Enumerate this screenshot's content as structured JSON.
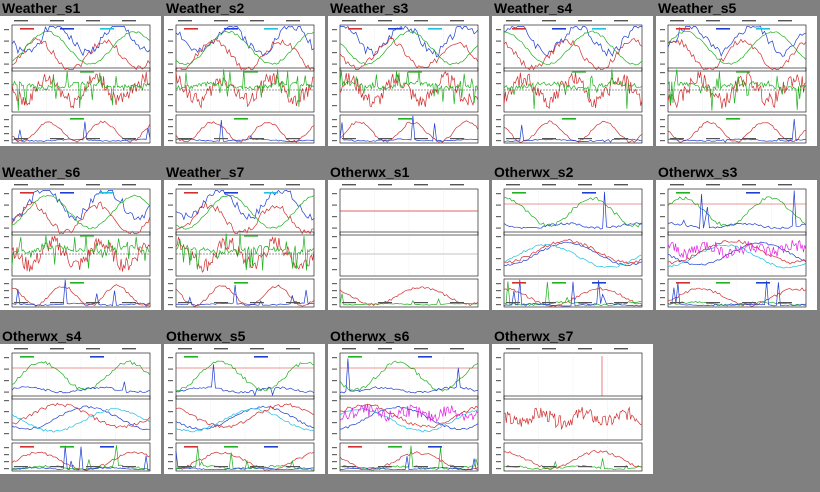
{
  "colors": {
    "background": "#808080",
    "panel_border": "#000000",
    "series": [
      "#1f3fd0",
      "#d03030",
      "#20b020",
      "#20c0e0",
      "#e020e0",
      "#606060"
    ]
  },
  "tiles": [
    {
      "title": "Weather_s1"
    },
    {
      "title": "Weather_s2"
    },
    {
      "title": "Weather_s3"
    },
    {
      "title": "Weather_s4"
    },
    {
      "title": "Weather_s5"
    },
    {
      "title": "Weather_s6"
    },
    {
      "title": "Weather_s7"
    },
    {
      "title": "Otherwx_s1"
    },
    {
      "title": "Otherwx_s2"
    },
    {
      "title": "Otherwx_s3"
    },
    {
      "title": "Otherwx_s4"
    },
    {
      "title": "Otherwx_s5"
    },
    {
      "title": "Otherwx_s6"
    },
    {
      "title": "Otherwx_s7"
    }
  ]
}
